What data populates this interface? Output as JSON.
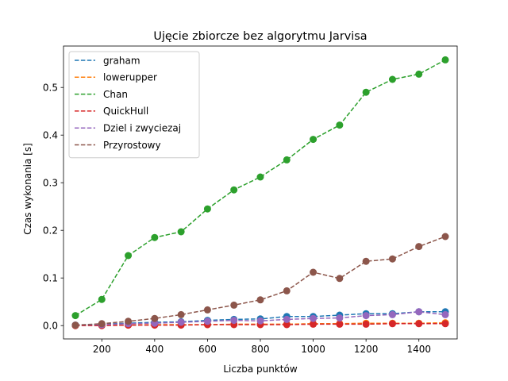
{
  "chart_data": {
    "type": "line",
    "title": "Ujęcie zbiorcze bez algorytmu Jarvisa",
    "xlabel": "Liczba punktów",
    "ylabel": "Czas wykonania [s]",
    "xlim": [
      55,
      1545
    ],
    "ylim": [
      -0.028,
      0.587
    ],
    "xticks": [
      200,
      400,
      600,
      800,
      1000,
      1200,
      1400
    ],
    "yticks": [
      0.0,
      0.1,
      0.2,
      0.3,
      0.4,
      0.5
    ],
    "xtick_labels": [
      "200",
      "400",
      "600",
      "800",
      "1000",
      "1200",
      "1400"
    ],
    "ytick_labels": [
      "0.0",
      "0.1",
      "0.2",
      "0.3",
      "0.4",
      "0.5"
    ],
    "legend_position": "top-left",
    "grid": false,
    "x": [
      100,
      200,
      300,
      400,
      500,
      600,
      700,
      800,
      900,
      1000,
      1100,
      1200,
      1300,
      1400,
      1500
    ],
    "series": [
      {
        "name": "graham",
        "color": "#1f77b4",
        "values": [
          0.001,
          0.003,
          0.005,
          0.007,
          0.008,
          0.011,
          0.013,
          0.014,
          0.019,
          0.019,
          0.022,
          0.025,
          0.025,
          0.029,
          0.029
        ]
      },
      {
        "name": "lowerupper",
        "color": "#ff7f0e",
        "values": [
          0.0,
          0.001,
          0.001,
          0.002,
          0.002,
          0.002,
          0.003,
          0.003,
          0.003,
          0.004,
          0.004,
          0.005,
          0.005,
          0.005,
          0.006
        ]
      },
      {
        "name": "Chan",
        "color": "#2ca02c",
        "values": [
          0.021,
          0.055,
          0.147,
          0.185,
          0.197,
          0.245,
          0.285,
          0.312,
          0.348,
          0.391,
          0.421,
          0.49,
          0.517,
          0.528,
          0.558
        ]
      },
      {
        "name": "QuickHull",
        "color": "#d62728",
        "values": [
          0.0,
          0.0,
          0.001,
          0.001,
          0.001,
          0.002,
          0.002,
          0.002,
          0.002,
          0.003,
          0.003,
          0.003,
          0.004,
          0.004,
          0.004
        ]
      },
      {
        "name": "Dziel i zwyciezaj",
        "color": "#9467bd",
        "values": [
          0.001,
          0.002,
          0.004,
          0.005,
          0.007,
          0.009,
          0.011,
          0.01,
          0.013,
          0.015,
          0.016,
          0.021,
          0.023,
          0.029,
          0.023
        ]
      },
      {
        "name": "Przyrostowy",
        "color": "#8c564b",
        "values": [
          0.001,
          0.004,
          0.009,
          0.015,
          0.023,
          0.033,
          0.043,
          0.054,
          0.073,
          0.112,
          0.099,
          0.135,
          0.14,
          0.166,
          0.187
        ]
      }
    ]
  }
}
